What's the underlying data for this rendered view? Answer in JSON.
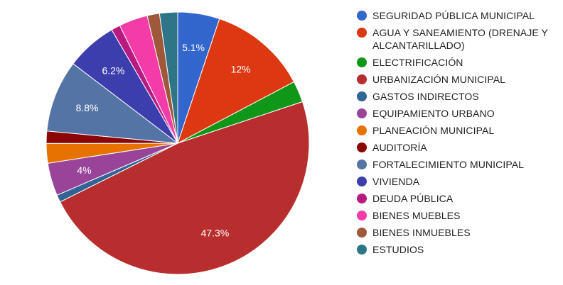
{
  "chart_data": {
    "type": "pie",
    "legend_position": "right",
    "slices": [
      {
        "label": "SEGURIDAD PÚBLICA MUNICIPAL",
        "value": 5.1,
        "display": "5.1%",
        "color": "#3366cc"
      },
      {
        "label": "AGUA Y SANEAMIENTO (DRENAJE Y ALCANTARILLADO)",
        "value": 12,
        "display": "12%",
        "color": "#dc3912"
      },
      {
        "label": "ELECTRIFICACIÓN",
        "value": 2.6,
        "display": "",
        "color": "#109618"
      },
      {
        "label": "URBANIZACIÓN MUNICIPAL",
        "value": 47.3,
        "display": "47.3%",
        "color": "#b82e2e"
      },
      {
        "label": "GASTOS INDIRECTOS",
        "value": 0.9,
        "display": "",
        "color": "#316395"
      },
      {
        "label": "EQUIPAMIENTO URBANO",
        "value": 4,
        "display": "4%",
        "color": "#994499"
      },
      {
        "label": "PLANEACIÓN MUNICIPAL",
        "value": 2.4,
        "display": "",
        "color": "#e67300"
      },
      {
        "label": "AUDITORÍA",
        "value": 1.5,
        "display": "",
        "color": "#8b0707"
      },
      {
        "label": "FORTALECIMIENTO MUNICIPAL",
        "value": 8.8,
        "display": "8.8%",
        "color": "#5574a6"
      },
      {
        "label": "VIVIENDA",
        "value": 6.2,
        "display": "6.2%",
        "color": "#3b3eac"
      },
      {
        "label": "DEUDA PÚBLICA",
        "value": 1.1,
        "display": "",
        "color": "#b81a82"
      },
      {
        "label": "BIENES MUEBLES",
        "value": 3.5,
        "display": "",
        "color": "#f43ca8"
      },
      {
        "label": "BIENES INMUEBLES",
        "value": 1.5,
        "display": "",
        "color": "#a0583b"
      },
      {
        "label": "ESTUDIOS",
        "value": 2.2,
        "display": "",
        "color": "#2e7587"
      }
    ]
  }
}
